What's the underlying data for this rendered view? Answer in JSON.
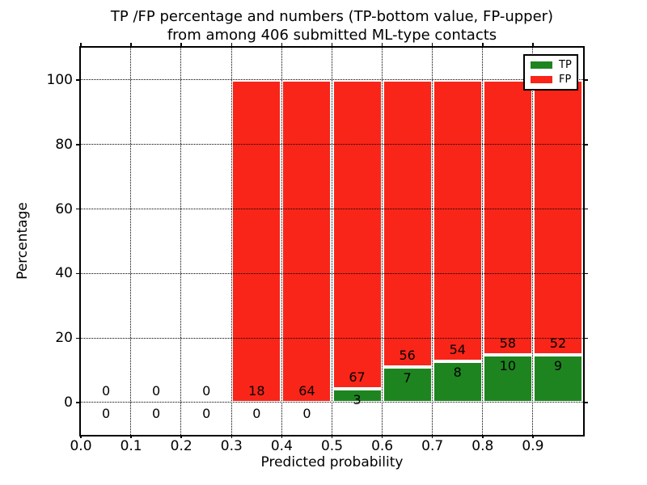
{
  "title": {
    "line1": "TP /FP percentage and numbers (TP-bottom value, FP-upper)",
    "line2": "from among 406 submitted ML-type contacts"
  },
  "axes": {
    "xlabel": "Predicted probability",
    "ylabel": "Percentage",
    "xtick_labels": [
      "0.0",
      "0.1",
      "0.2",
      "0.3",
      "0.4",
      "0.5",
      "0.6",
      "0.7",
      "0.8",
      "0.9"
    ],
    "ytick_labels": [
      "0",
      "20",
      "40",
      "60",
      "80",
      "100"
    ]
  },
  "legend": {
    "items": [
      {
        "label": "TP",
        "color": "#1e8420"
      },
      {
        "label": "FP",
        "color": "#f92519"
      }
    ]
  },
  "chart_data": {
    "type": "bar",
    "subtype": "stacked-percentage-histogram",
    "title": "TP /FP percentage and numbers (TP-bottom value, FP-upper) from among 406 submitted ML-type contacts",
    "xlabel": "Predicted probability",
    "ylabel": "Percentage",
    "xlim": [
      0.0,
      1.0
    ],
    "ylim": [
      -10,
      110
    ],
    "xticks": [
      0.0,
      0.1,
      0.2,
      0.3,
      0.4,
      0.5,
      0.6,
      0.7,
      0.8,
      0.9
    ],
    "yticks": [
      0,
      20,
      40,
      60,
      80,
      100
    ],
    "grid": true,
    "grid_style": "dotted",
    "legend_position": "upper right",
    "colors": {
      "tp": "#1e8420",
      "fp": "#f92519",
      "bar_edge": "#ffffff"
    },
    "total_contacts": 406,
    "series": [
      {
        "name": "TP",
        "values": [
          0,
          0,
          0,
          0,
          0,
          3,
          7,
          8,
          10,
          9
        ]
      },
      {
        "name": "FP",
        "values": [
          0,
          0,
          0,
          18,
          64,
          67,
          56,
          54,
          58,
          52
        ]
      }
    ],
    "bins": [
      {
        "range": [
          0.0,
          0.1
        ],
        "tp": 0,
        "fp": 0,
        "tp_pct": 0,
        "fp_pct": 0,
        "bar": false
      },
      {
        "range": [
          0.1,
          0.2
        ],
        "tp": 0,
        "fp": 0,
        "tp_pct": 0,
        "fp_pct": 0,
        "bar": false
      },
      {
        "range": [
          0.2,
          0.3
        ],
        "tp": 0,
        "fp": 0,
        "tp_pct": 0,
        "fp_pct": 0,
        "bar": false
      },
      {
        "range": [
          0.3,
          0.4
        ],
        "tp": 0,
        "fp": 18,
        "tp_pct": 0,
        "fp_pct": 100,
        "bar": true
      },
      {
        "range": [
          0.4,
          0.5
        ],
        "tp": 0,
        "fp": 64,
        "tp_pct": 0,
        "fp_pct": 100,
        "bar": true
      },
      {
        "range": [
          0.5,
          0.6
        ],
        "tp": 3,
        "fp": 67,
        "tp_pct": 4.29,
        "fp_pct": 95.71,
        "bar": true
      },
      {
        "range": [
          0.6,
          0.7
        ],
        "tp": 7,
        "fp": 56,
        "tp_pct": 11.11,
        "fp_pct": 88.89,
        "bar": true
      },
      {
        "range": [
          0.7,
          0.8
        ],
        "tp": 8,
        "fp": 54,
        "tp_pct": 12.9,
        "fp_pct": 87.1,
        "bar": true
      },
      {
        "range": [
          0.8,
          0.9
        ],
        "tp": 10,
        "fp": 58,
        "tp_pct": 14.71,
        "fp_pct": 85.29,
        "bar": true
      },
      {
        "range": [
          0.9,
          1.0
        ],
        "tp": 9,
        "fp": 52,
        "tp_pct": 14.75,
        "fp_pct": 85.25,
        "bar": true
      }
    ]
  }
}
